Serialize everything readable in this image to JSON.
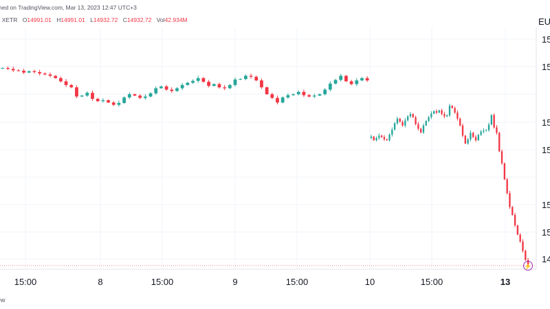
{
  "header": {
    "published": "hed on TradingView.com, Mar 13, 2023 12:47 UTC+3",
    "exchange": ", XETR",
    "o_key": "O",
    "o_val": "14991.01",
    "h_key": "H",
    "h_val": "14991.01",
    "l_key": "L",
    "l_val": "14932.72",
    "c_key": "C",
    "c_val": "14932.72",
    "vol_key": "Vol",
    "vol_val": "42.934M",
    "currency": "EU"
  },
  "footer": {
    "text": "ew"
  },
  "colors": {
    "up": "#26a69a",
    "down": "#f23645",
    "last_price_line": "#f23645"
  },
  "icons": {
    "bolt": "lightning-icon"
  },
  "chart_data": {
    "type": "candlestick",
    "x_tick_labels": [
      {
        "label": "15:00",
        "bold": false
      },
      {
        "label": "8",
        "bold": false
      },
      {
        "label": "15:00",
        "bold": false
      },
      {
        "label": "9",
        "bold": false
      },
      {
        "label": "15:00",
        "bold": false
      },
      {
        "label": "10",
        "bold": false
      },
      {
        "label": "15:00",
        "bold": false
      },
      {
        "label": "13",
        "bold": true
      }
    ],
    "y_tick_labels": [
      "15",
      "15",
      "15",
      "15",
      "15",
      "15",
      "14"
    ],
    "y_range": [
      14925,
      15450
    ],
    "last_price": 14932.72,
    "sessions": [
      {
        "points": [
          15362,
          15362,
          15360,
          15357,
          15356,
          15352,
          15355,
          15353,
          15350,
          15348,
          15345,
          15340,
          15333,
          15325,
          15320,
          15300,
          15302,
          15308,
          15295,
          15290,
          15292,
          15287,
          15282,
          15286,
          15298,
          15305,
          15302,
          15297,
          15300,
          15307,
          15318,
          15322,
          15315,
          15312,
          15318,
          15325,
          15330,
          15334,
          15340,
          15332,
          15323,
          15327,
          15320,
          15318,
          15325,
          15337,
          15338,
          15345,
          15343,
          15335,
          15320,
          15305,
          15297,
          15287,
          15298,
          15303,
          15305,
          15310,
          15303,
          15300,
          15302,
          15305,
          15315,
          15328,
          15336,
          15345,
          15333,
          15327,
          15335,
          15340,
          15335
        ]
      },
      {
        "points": [
          15210,
          15213,
          15205,
          15210,
          15215,
          15212,
          15207,
          15205,
          15217,
          15228,
          15242,
          15252,
          15245,
          15237,
          15248,
          15257,
          15262,
          15255,
          15240,
          15230,
          15222,
          15237,
          15247,
          15255,
          15263,
          15268,
          15265,
          15270,
          15262,
          15257,
          15259,
          15280,
          15275,
          15265,
          15252,
          15237,
          15215,
          15198,
          15207,
          15221,
          15212,
          15205,
          15217,
          15224,
          15226,
          15227,
          15239,
          15260,
          15233,
          15221,
          15181,
          15155,
          15120,
          15090,
          15060,
          15043,
          15020,
          15000,
          14985,
          14965,
          14945,
          14933
        ]
      }
    ]
  }
}
